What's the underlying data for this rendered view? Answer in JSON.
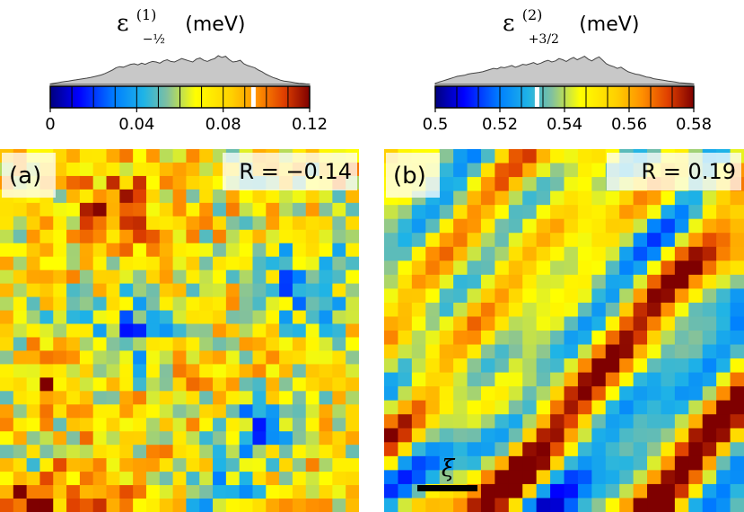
{
  "chart_data": [
    {
      "type": "heatmap",
      "panel_label": "(a)",
      "title": "ε",
      "title_sup": "(1)",
      "title_sub": "−½",
      "title_unit": "(meV)",
      "colorbar": {
        "min": 0,
        "max": 0.12,
        "ticks": [
          0,
          0.04,
          0.08,
          0.12
        ],
        "tick_labels": [
          "0",
          "0.04",
          "0.08",
          "0.12"
        ],
        "marker_value": 0.094,
        "histogram": [
          0.02,
          0.04,
          0.06,
          0.08,
          0.1,
          0.12,
          0.14,
          0.16,
          0.18,
          0.2,
          0.22,
          0.24,
          0.27,
          0.3,
          0.33,
          0.38,
          0.44,
          0.5,
          0.58,
          0.62,
          0.6,
          0.65,
          0.7,
          0.72,
          0.68,
          0.74,
          0.7,
          0.76,
          0.8,
          0.78,
          0.74,
          0.82,
          0.86,
          0.8,
          0.78,
          0.84,
          0.9,
          0.86,
          0.82,
          0.78,
          0.88,
          0.92,
          0.84,
          0.8,
          0.86,
          0.9,
          1.0,
          0.94,
          0.98,
          0.86,
          0.78,
          0.8,
          0.84,
          0.72,
          0.66,
          0.62,
          0.58,
          0.5,
          0.44,
          0.36,
          0.3,
          0.24,
          0.2,
          0.15,
          0.12,
          0.1,
          0.08,
          0.06,
          0.04,
          0.03,
          0.02,
          0.01
        ]
      },
      "correlation_label": "R = −0.14",
      "grid_cols": 27,
      "grid_rows": 27
    },
    {
      "type": "heatmap",
      "panel_label": "(b)",
      "title": "ε",
      "title_sup": "(2)",
      "title_sub": "+3/2",
      "title_unit": "(meV)",
      "colorbar": {
        "min": 0.5,
        "max": 0.58,
        "ticks": [
          0.5,
          0.52,
          0.54,
          0.56,
          0.58
        ],
        "tick_labels": [
          "0.5",
          "0.52",
          "0.54",
          "0.56",
          "0.58"
        ],
        "marker_value": 0.5315,
        "histogram": [
          0.04,
          0.08,
          0.12,
          0.16,
          0.2,
          0.24,
          0.28,
          0.3,
          0.32,
          0.36,
          0.38,
          0.4,
          0.42,
          0.44,
          0.48,
          0.52,
          0.56,
          0.54,
          0.6,
          0.58,
          0.62,
          0.66,
          0.6,
          0.64,
          0.7,
          0.68,
          0.72,
          0.76,
          0.7,
          0.74,
          0.8,
          0.84,
          0.78,
          0.82,
          0.9,
          0.86,
          0.8,
          0.88,
          0.94,
          0.86,
          0.92,
          0.98,
          0.88,
          0.82,
          0.9,
          0.96,
          0.84,
          0.72,
          0.66,
          0.62,
          0.56,
          0.6,
          0.52,
          0.44,
          0.4,
          0.36,
          0.34,
          0.3,
          0.26,
          0.24,
          0.2,
          0.18,
          0.16,
          0.14,
          0.12,
          0.1,
          0.08,
          0.06,
          0.05,
          0.04,
          0.03,
          0.02
        ]
      },
      "correlation_label": "R = 0.19",
      "scale_bar_label": "ξ",
      "grid_cols": 26,
      "grid_rows": 26
    }
  ]
}
